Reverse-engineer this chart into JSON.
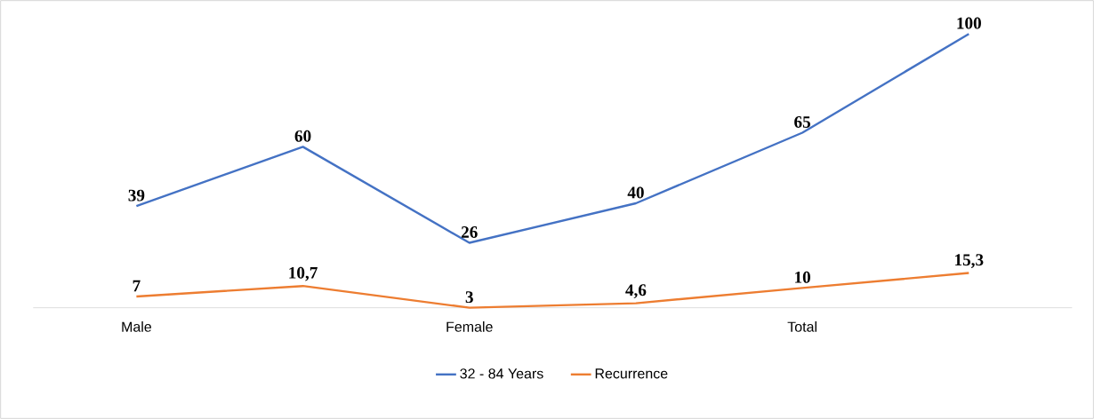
{
  "chart_data": {
    "type": "line",
    "categories": [
      "Male",
      null,
      "Female",
      null,
      "Total",
      null
    ],
    "series": [
      {
        "name": "32 - 84 Years",
        "color": "#4472c4",
        "values": [
          39,
          60,
          26,
          40,
          65,
          100
        ],
        "value_labels": [
          "39",
          "60",
          "26",
          "40",
          "65",
          "100"
        ]
      },
      {
        "name": "Recurrence",
        "color": "#ed7d31",
        "values": [
          7,
          10.7,
          3,
          4.6,
          10,
          15.3
        ],
        "value_labels": [
          "7",
          "10,7",
          "3",
          "4,6",
          "10",
          "15,3"
        ]
      }
    ],
    "legend": "bottom"
  }
}
